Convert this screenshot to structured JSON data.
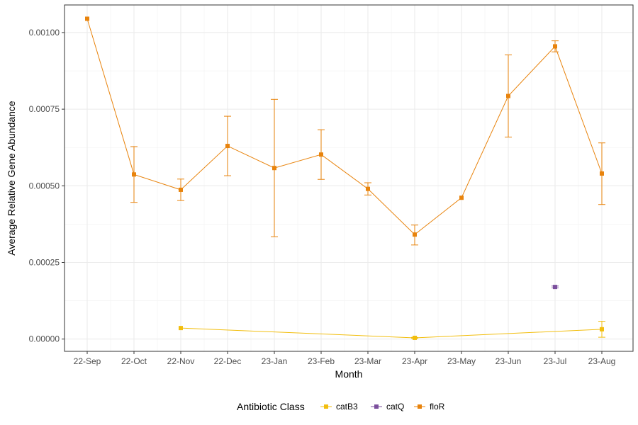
{
  "chart_data": {
    "type": "line",
    "title": "",
    "xlabel": "Month",
    "ylabel": "Average Relative Gene Abundance",
    "categories": [
      "22-Sep",
      "22-Oct",
      "22-Nov",
      "22-Dec",
      "23-Jan",
      "23-Feb",
      "23-Mar",
      "23-Apr",
      "23-May",
      "23-Jun",
      "23-Jul",
      "23-Aug"
    ],
    "yticks": [
      0,
      0.00025,
      0.0005,
      0.00075,
      0.001
    ],
    "ytick_labels": [
      "0.00000",
      "0.00025",
      "0.00050",
      "0.00075",
      "0.00100"
    ],
    "ylim": [
      -4e-05,
      0.00109
    ],
    "grid": true,
    "legend_title": "Antibiotic Class",
    "legend_position": "bottom",
    "series": [
      {
        "name": "catB3",
        "color": "#F2BE0E",
        "points": [
          {
            "x": "22-Nov",
            "y": 3.6e-05,
            "lo": null,
            "hi": null
          },
          {
            "x": "23-Apr",
            "y": 4e-06,
            "lo": 2.5e-06,
            "hi": 5.5e-06
          },
          {
            "x": "23-Aug",
            "y": 3.2e-05,
            "lo": 6e-06,
            "hi": 5.8e-05
          }
        ]
      },
      {
        "name": "catQ",
        "color": "#7B4F9D",
        "points": [
          {
            "x": "23-Jul",
            "y": 0.00017,
            "lo": 0.000167,
            "hi": 0.000173
          }
        ]
      },
      {
        "name": "floR",
        "color": "#E8830C",
        "points": [
          {
            "x": "22-Sep",
            "y": 0.001045,
            "lo": null,
            "hi": null
          },
          {
            "x": "22-Oct",
            "y": 0.000537,
            "lo": 0.000446,
            "hi": 0.000628
          },
          {
            "x": "22-Nov",
            "y": 0.000487,
            "lo": 0.000452,
            "hi": 0.000522
          },
          {
            "x": "22-Dec",
            "y": 0.00063,
            "lo": 0.000533,
            "hi": 0.000727
          },
          {
            "x": "23-Jan",
            "y": 0.000558,
            "lo": 0.000334,
            "hi": 0.000782
          },
          {
            "x": "23-Feb",
            "y": 0.000602,
            "lo": 0.000521,
            "hi": 0.000683
          },
          {
            "x": "23-Mar",
            "y": 0.00049,
            "lo": 0.00047,
            "hi": 0.00051
          },
          {
            "x": "23-Apr",
            "y": 0.000341,
            "lo": 0.000307,
            "hi": 0.000372
          },
          {
            "x": "23-May",
            "y": 0.000461,
            "lo": null,
            "hi": null
          },
          {
            "x": "23-Jun",
            "y": 0.000793,
            "lo": 0.000659,
            "hi": 0.000927
          },
          {
            "x": "23-Jul",
            "y": 0.000955,
            "lo": 0.000937,
            "hi": 0.000973
          },
          {
            "x": "23-Aug",
            "y": 0.00054,
            "lo": 0.000439,
            "hi": 0.00064
          }
        ]
      }
    ]
  }
}
